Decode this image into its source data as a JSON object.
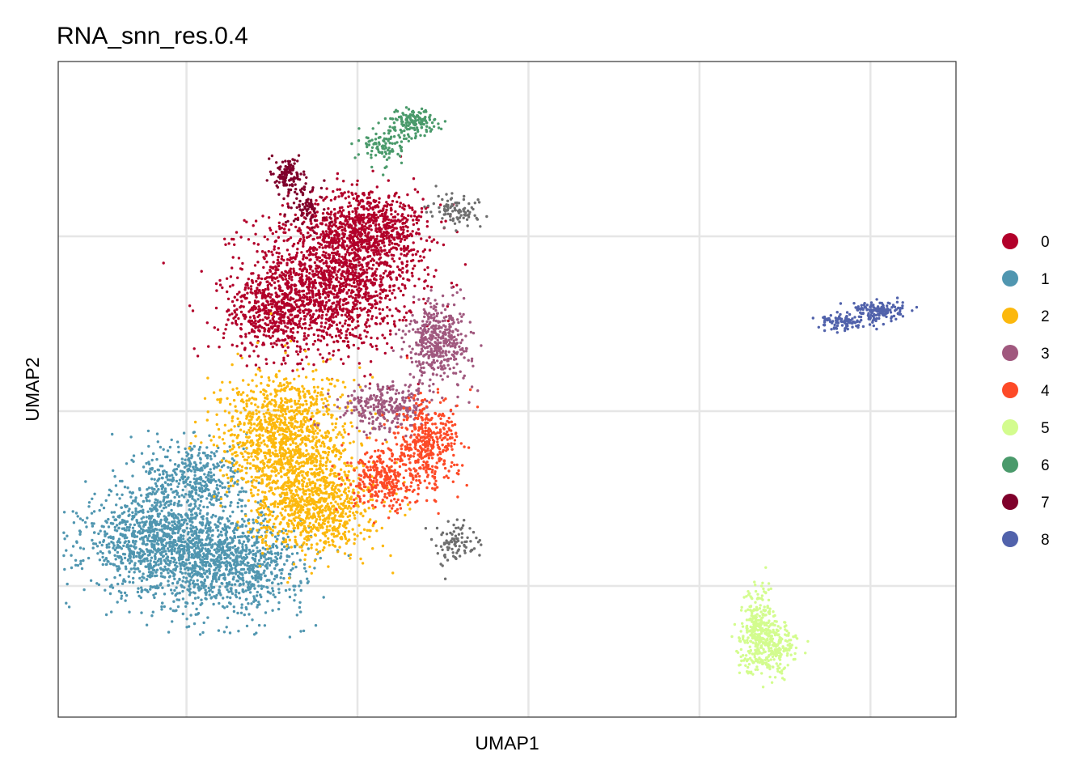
{
  "chart_data": {
    "type": "scatter",
    "title": "RNA_snn_res.0.4",
    "xlabel": "UMAP1",
    "ylabel": "UMAP2",
    "x_ticks_visible": false,
    "y_ticks_visible": false,
    "xlim": [
      -10,
      11
    ],
    "ylim": [
      -7,
      8
    ],
    "grid": true,
    "legend_position": "right",
    "legend": [
      {
        "label": "0",
        "color": "#b2002a"
      },
      {
        "label": "1",
        "color": "#5096b0"
      },
      {
        "label": "2",
        "color": "#fcb80d"
      },
      {
        "label": "3",
        "color": "#a0587e"
      },
      {
        "label": "4",
        "color": "#fd4a27"
      },
      {
        "label": "5",
        "color": "#d3fc8e"
      },
      {
        "label": "6",
        "color": "#4a9a6b"
      },
      {
        "label": "7",
        "color": "#7f002b"
      },
      {
        "label": "8",
        "color": "#5162ab"
      }
    ],
    "clusters": [
      {
        "cluster": "0",
        "color": "#b2002a",
        "n": 2600,
        "blobs": [
          {
            "cx": -3.6,
            "cy": 3.0,
            "sx": 1.3,
            "sy": 1.1,
            "w": 0.6
          },
          {
            "cx": -2.7,
            "cy": 4.2,
            "sx": 0.9,
            "sy": 0.6,
            "w": 0.25
          },
          {
            "cx": -5.0,
            "cy": 2.2,
            "sx": 0.8,
            "sy": 0.6,
            "w": 0.15
          }
        ]
      },
      {
        "cluster": "1",
        "color": "#5096b0",
        "n": 2500,
        "blobs": [
          {
            "cx": -7.6,
            "cy": -3.0,
            "sx": 1.2,
            "sy": 0.8,
            "w": 0.5
          },
          {
            "cx": -5.9,
            "cy": -3.5,
            "sx": 1.1,
            "sy": 0.75,
            "w": 0.35
          },
          {
            "cx": -6.8,
            "cy": -1.5,
            "sx": 0.8,
            "sy": 0.6,
            "w": 0.15
          }
        ]
      },
      {
        "cluster": "2",
        "color": "#fcb80d",
        "n": 2000,
        "blobs": [
          {
            "cx": -4.7,
            "cy": -0.6,
            "sx": 1.0,
            "sy": 1.0,
            "w": 0.6
          },
          {
            "cx": -4.0,
            "cy": -2.2,
            "sx": 0.9,
            "sy": 0.7,
            "w": 0.4
          }
        ]
      },
      {
        "cluster": "3",
        "color": "#a0587e",
        "n": 700,
        "blobs": [
          {
            "cx": -1.1,
            "cy": 1.6,
            "sx": 0.5,
            "sy": 0.6,
            "w": 0.6
          },
          {
            "cx": -2.3,
            "cy": 0.1,
            "sx": 0.7,
            "sy": 0.35,
            "w": 0.4
          }
        ]
      },
      {
        "cluster": "4",
        "color": "#fd4a27",
        "n": 700,
        "blobs": [
          {
            "cx": -1.4,
            "cy": -0.8,
            "sx": 0.5,
            "sy": 0.7,
            "w": 0.6
          },
          {
            "cx": -2.4,
            "cy": -1.6,
            "sx": 0.5,
            "sy": 0.45,
            "w": 0.4
          }
        ]
      },
      {
        "cluster": "5",
        "color": "#d3fc8e",
        "n": 500,
        "blobs": [
          {
            "cx": 6.6,
            "cy": -5.4,
            "sx": 0.45,
            "sy": 0.4,
            "w": 0.6
          },
          {
            "cx": 6.4,
            "cy": -4.8,
            "sx": 0.25,
            "sy": 0.5,
            "w": 0.4
          }
        ]
      },
      {
        "cluster": "6",
        "color": "#4a9a6b",
        "n": 250,
        "blobs": [
          {
            "cx": -1.7,
            "cy": 6.6,
            "sx": 0.35,
            "sy": 0.2,
            "w": 0.6
          },
          {
            "cx": -2.4,
            "cy": 6.1,
            "sx": 0.35,
            "sy": 0.3,
            "w": 0.4
          }
        ]
      },
      {
        "cluster": "7",
        "color": "#7f002b",
        "n": 200,
        "blobs": [
          {
            "cx": -4.6,
            "cy": 5.4,
            "sx": 0.22,
            "sy": 0.25,
            "w": 0.6
          },
          {
            "cx": -4.2,
            "cy": 4.7,
            "sx": 0.3,
            "sy": 0.35,
            "w": 0.4
          }
        ]
      },
      {
        "cluster": "8",
        "color": "#5162ab",
        "n": 250,
        "blobs": [
          {
            "cx": 9.2,
            "cy": 2.3,
            "sx": 0.4,
            "sy": 0.15,
            "w": 0.6
          },
          {
            "cx": 8.4,
            "cy": 2.05,
            "sx": 0.4,
            "sy": 0.12,
            "w": 0.4
          }
        ]
      },
      {
        "cluster": "other",
        "color": "#6e6e6e",
        "n": 180,
        "blobs": [
          {
            "cx": -0.7,
            "cy": 4.6,
            "sx": 0.4,
            "sy": 0.25,
            "w": 0.5
          },
          {
            "cx": -0.7,
            "cy": -3.0,
            "sx": 0.3,
            "sy": 0.3,
            "w": 0.5
          }
        ]
      }
    ]
  }
}
